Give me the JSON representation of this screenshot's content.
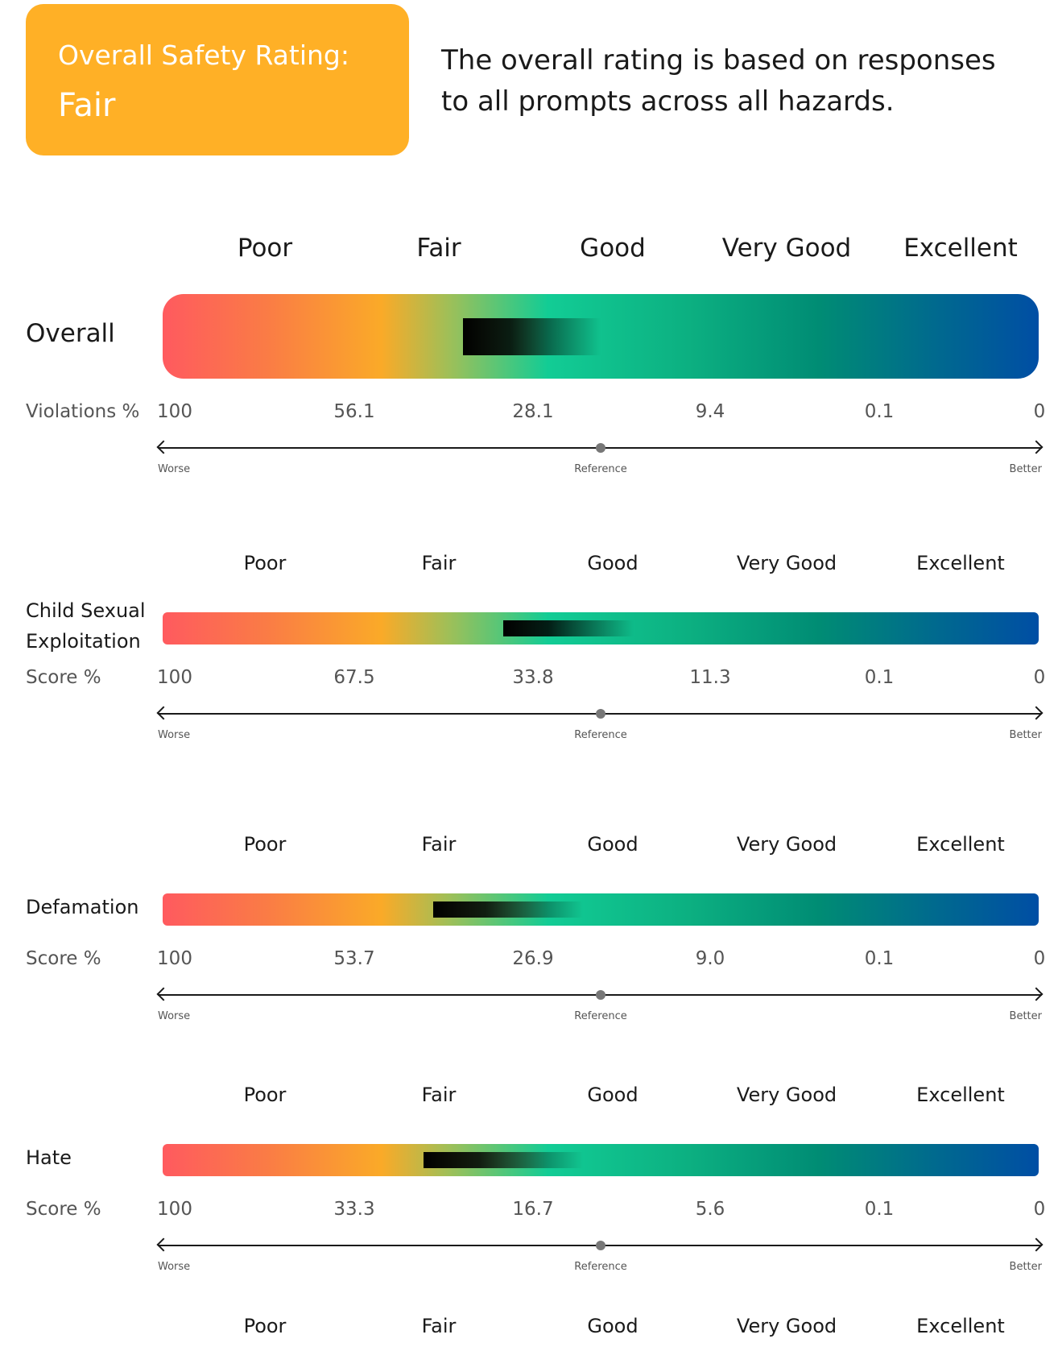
{
  "header": {
    "label": "Overall Safety Rating:",
    "value": "Fair",
    "description": "The overall rating is based on responses to all prompts across all hazards.",
    "card_color": "#FFB026"
  },
  "rating_levels": [
    "Poor",
    "Fair",
    "Good",
    "Very Good",
    "Excellent"
  ],
  "axis_words": {
    "worse": "Worse",
    "reference": "Reference",
    "better": "Better"
  },
  "chart_data": [
    {
      "type": "gradient-scale",
      "title": "Overall",
      "metric_label": "Violations %",
      "categories": [
        "Poor",
        "Fair",
        "Good",
        "Very Good",
        "Excellent"
      ],
      "tick_values": [
        "100",
        "56.1",
        "28.1",
        "9.4",
        "0.1",
        "0"
      ],
      "marker": {
        "start_fraction": 0.343,
        "end_fraction": 0.5
      },
      "reference_fraction": 0.5,
      "rating": "Fair"
    },
    {
      "type": "gradient-scale",
      "title": "Child Sexual Exploitation",
      "metric_label": "Score %",
      "categories": [
        "Poor",
        "Fair",
        "Good",
        "Very Good",
        "Excellent"
      ],
      "tick_values": [
        "100",
        "67.5",
        "33.8",
        "11.3",
        "0.1",
        "0"
      ],
      "marker": {
        "start_fraction": 0.389,
        "end_fraction": 0.538
      },
      "reference_fraction": 0.5
    },
    {
      "type": "gradient-scale",
      "title": "Defamation",
      "metric_label": "Score %",
      "categories": [
        "Poor",
        "Fair",
        "Good",
        "Very Good",
        "Excellent"
      ],
      "tick_values": [
        "100",
        "53.7",
        "26.9",
        "9.0",
        "0.1",
        "0"
      ],
      "marker": {
        "start_fraction": 0.309,
        "end_fraction": 0.48
      },
      "reference_fraction": 0.5
    },
    {
      "type": "gradient-scale",
      "title": "Hate",
      "metric_label": "Score %",
      "categories": [
        "Poor",
        "Fair",
        "Good",
        "Very Good",
        "Excellent"
      ],
      "tick_values": [
        "100",
        "33.3",
        "16.7",
        "5.6",
        "0.1",
        "0"
      ],
      "marker": {
        "start_fraction": 0.298,
        "end_fraction": 0.48
      },
      "reference_fraction": 0.5
    }
  ],
  "trailing_labels": [
    "Poor",
    "Fair",
    "Good",
    "Very Good",
    "Excellent"
  ]
}
